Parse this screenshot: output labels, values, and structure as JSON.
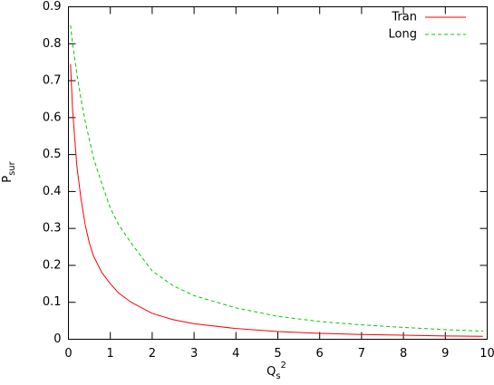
{
  "chart_data": {
    "type": "line",
    "xlabel": [
      "Q",
      "s",
      "2"
    ],
    "ylabel": [
      "P",
      "sur"
    ],
    "x": [
      0.05,
      0.1,
      0.2,
      0.3,
      0.4,
      0.5,
      0.6,
      0.8,
      1,
      1.2,
      1.5,
      2,
      2.5,
      3,
      4,
      5,
      6,
      7,
      8,
      9,
      9.9
    ],
    "series": [
      {
        "name": "Tran",
        "color": "#ff0000",
        "dashed": false,
        "values": [
          0.745,
          0.62,
          0.47,
          0.38,
          0.31,
          0.26,
          0.225,
          0.18,
          0.15,
          0.125,
          0.1,
          0.07,
          0.053,
          0.042,
          0.029,
          0.021,
          0.016,
          0.013,
          0.011,
          0.009,
          0.008
        ]
      },
      {
        "name": "Long",
        "color": "#00cc00",
        "dashed": true,
        "values": [
          0.85,
          0.8,
          0.72,
          0.65,
          0.59,
          0.54,
          0.49,
          0.42,
          0.355,
          0.31,
          0.26,
          0.185,
          0.145,
          0.118,
          0.085,
          0.062,
          0.048,
          0.039,
          0.032,
          0.026,
          0.022
        ]
      }
    ],
    "xlim": [
      0,
      10
    ],
    "xticks": [
      0,
      1,
      2,
      3,
      4,
      5,
      6,
      7,
      8,
      9,
      10
    ],
    "ylim": [
      0,
      0.9
    ],
    "yticks": [
      0,
      0.1,
      0.2,
      0.3,
      0.4,
      0.5,
      0.6,
      0.7,
      0.8,
      0.9
    ],
    "legend": "top-right"
  }
}
